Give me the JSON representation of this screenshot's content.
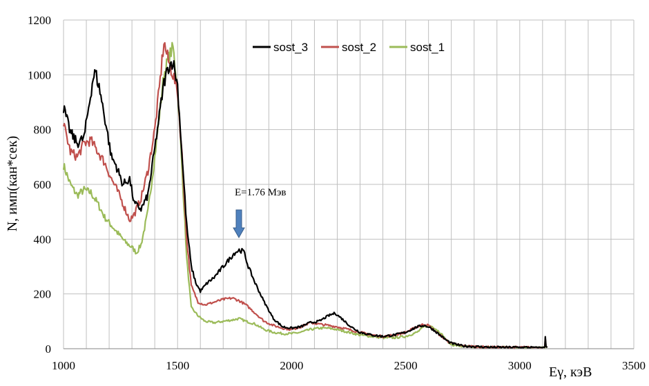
{
  "chart_data": {
    "type": "line",
    "xlabel": "Eγ, кэВ",
    "ylabel": "N, имп(кан*сек)",
    "xlim": [
      1000,
      3500
    ],
    "ylim": [
      0,
      1200
    ],
    "xticks": [
      1000,
      1500,
      2000,
      2500,
      3000,
      3500
    ],
    "yticks": [
      0,
      200,
      400,
      600,
      800,
      1000,
      1200
    ],
    "grid": true,
    "legend_position": "top-center",
    "annotation": {
      "text": "E=1.76 Мэв",
      "x": 1765,
      "points_to_y": 370
    },
    "series": [
      {
        "name": "sost_3",
        "color": "#000000",
        "x": [
          1000,
          1030,
          1060,
          1090,
          1110,
          1130,
          1140,
          1160,
          1190,
          1210,
          1230,
          1260,
          1290,
          1310,
          1340,
          1370,
          1400,
          1420,
          1440,
          1460,
          1480,
          1500,
          1520,
          1540,
          1560,
          1580,
          1600,
          1630,
          1660,
          1690,
          1720,
          1750,
          1770,
          1790,
          1810,
          1840,
          1880,
          1920,
          1960,
          2000,
          2040,
          2080,
          2120,
          2160,
          2190,
          2220,
          2260,
          2300,
          2350,
          2400,
          2450,
          2500,
          2550,
          2580,
          2600,
          2620,
          2650,
          2680,
          2700,
          2750,
          2800,
          2850,
          2900,
          2950,
          3000,
          3050,
          3100,
          3110,
          3112,
          3115,
          3120
        ],
        "y": [
          880,
          790,
          750,
          770,
          880,
          990,
          1010,
          940,
          800,
          700,
          670,
          600,
          620,
          530,
          510,
          560,
          730,
          850,
          970,
          1030,
          1050,
          960,
          700,
          450,
          300,
          240,
          210,
          240,
          260,
          290,
          320,
          350,
          360,
          355,
          300,
          240,
          170,
          110,
          80,
          75,
          80,
          95,
          100,
          120,
          130,
          110,
          80,
          60,
          50,
          45,
          50,
          60,
          80,
          85,
          80,
          70,
          50,
          30,
          20,
          10,
          8,
          6,
          5,
          5,
          5,
          5,
          5,
          5,
          45,
          10,
          5
        ]
      },
      {
        "name": "sost_2",
        "color": "#C0504D",
        "x": [
          1000,
          1030,
          1060,
          1090,
          1120,
          1150,
          1180,
          1210,
          1240,
          1270,
          1290,
          1310,
          1340,
          1370,
          1400,
          1420,
          1440,
          1460,
          1480,
          1500,
          1520,
          1540,
          1560,
          1590,
          1620,
          1660,
          1700,
          1740,
          1770,
          1800,
          1840,
          1880,
          1920,
          1960,
          2000,
          2040,
          2080,
          2120,
          2160,
          2200,
          2250,
          2300,
          2350,
          2400,
          2450,
          2500,
          2550,
          2580,
          2600,
          2620,
          2650,
          2680,
          2700,
          2750,
          2800,
          2850,
          2900,
          2950,
          3000,
          3050,
          3100,
          3110,
          3112,
          3115,
          3120
        ],
        "y": [
          820,
          720,
          700,
          750,
          760,
          720,
          680,
          620,
          570,
          510,
          470,
          490,
          550,
          650,
          800,
          950,
          1120,
          1050,
          1000,
          940,
          700,
          400,
          230,
          170,
          160,
          170,
          180,
          185,
          175,
          160,
          130,
          100,
          85,
          75,
          70,
          80,
          95,
          90,
          85,
          80,
          70,
          60,
          50,
          45,
          50,
          60,
          80,
          90,
          85,
          70,
          50,
          30,
          20,
          10,
          8,
          6,
          5,
          5,
          5,
          5,
          5,
          5,
          40,
          10,
          5
        ]
      },
      {
        "name": "sost_1",
        "color": "#9BBB59",
        "x": [
          1000,
          1030,
          1060,
          1090,
          1120,
          1150,
          1180,
          1210,
          1240,
          1270,
          1300,
          1320,
          1340,
          1370,
          1400,
          1420,
          1440,
          1460,
          1480,
          1500,
          1520,
          1540,
          1560,
          1590,
          1620,
          1660,
          1700,
          1740,
          1770,
          1800,
          1840,
          1880,
          1920,
          1960,
          2000,
          2040,
          2080,
          2120,
          2160,
          2200,
          2250,
          2300,
          2350,
          2400,
          2450,
          2500,
          2550,
          2580,
          2600,
          2620,
          2650,
          2680,
          2700,
          2750,
          2800,
          2850,
          2900,
          2950,
          3000,
          3050,
          3100,
          3110,
          3112,
          3115,
          3120
        ],
        "y": [
          670,
          600,
          560,
          580,
          570,
          530,
          480,
          450,
          420,
          390,
          370,
          350,
          380,
          500,
          700,
          850,
          1000,
          1060,
          1100,
          950,
          650,
          330,
          150,
          120,
          100,
          95,
          100,
          105,
          110,
          100,
          90,
          70,
          60,
          55,
          55,
          60,
          70,
          75,
          75,
          70,
          60,
          50,
          45,
          40,
          40,
          45,
          60,
          80,
          85,
          80,
          60,
          30,
          15,
          8,
          6,
          5,
          5,
          5,
          5,
          5,
          5,
          5,
          30,
          8,
          5
        ]
      }
    ]
  }
}
